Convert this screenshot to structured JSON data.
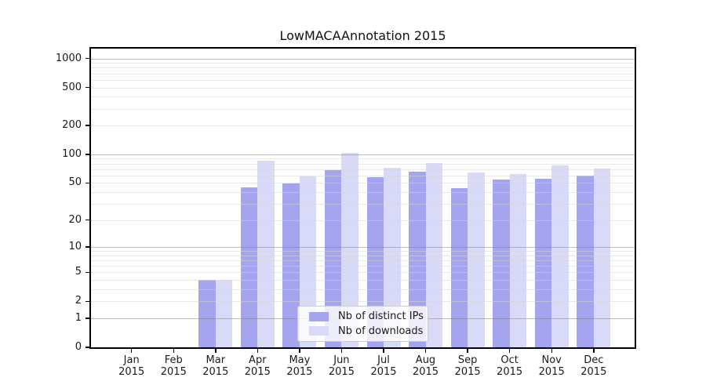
{
  "chart_data": {
    "type": "bar",
    "title": "LowMACAAnnotation 2015",
    "categories": [
      "Jan",
      "Feb",
      "Mar",
      "Apr",
      "May",
      "Jun",
      "Jul",
      "Aug",
      "Sep",
      "Oct",
      "Nov",
      "Dec"
    ],
    "x_year_label": "2015",
    "series": [
      {
        "name": "Nb of distinct IPs",
        "color": "#a4a4ef",
        "values": [
          0,
          0,
          4,
          45,
          49,
          68,
          58,
          66,
          44,
          54,
          55,
          60
        ]
      },
      {
        "name": "Nb of downloads",
        "color": "#d9d9f8",
        "values": [
          0,
          0,
          4,
          85,
          59,
          104,
          72,
          81,
          65,
          62,
          76,
          71
        ]
      }
    ],
    "y_ticks": [
      0,
      1,
      2,
      5,
      10,
      20,
      50,
      100,
      200,
      500,
      1000
    ],
    "y_scale": "log10(1+value)",
    "ylim": [
      0,
      1270
    ],
    "grid": {
      "major_values": [
        1,
        10,
        100,
        1000
      ],
      "minor_values": [
        2,
        3,
        4,
        5,
        6,
        7,
        8,
        9,
        20,
        30,
        40,
        50,
        60,
        70,
        80,
        90,
        200,
        300,
        400,
        500,
        600,
        700,
        800,
        900
      ],
      "major_color": "rgba(125,125,125,0.5)",
      "minor_color": "rgba(213,213,213,0.55)"
    },
    "legend": {
      "position": "lower-center",
      "entries": [
        "Nb of distinct IPs",
        "Nb of downloads"
      ]
    },
    "colors": {
      "background": "#ffffff",
      "spine": "#000000",
      "text": "#1a1a1a"
    }
  }
}
